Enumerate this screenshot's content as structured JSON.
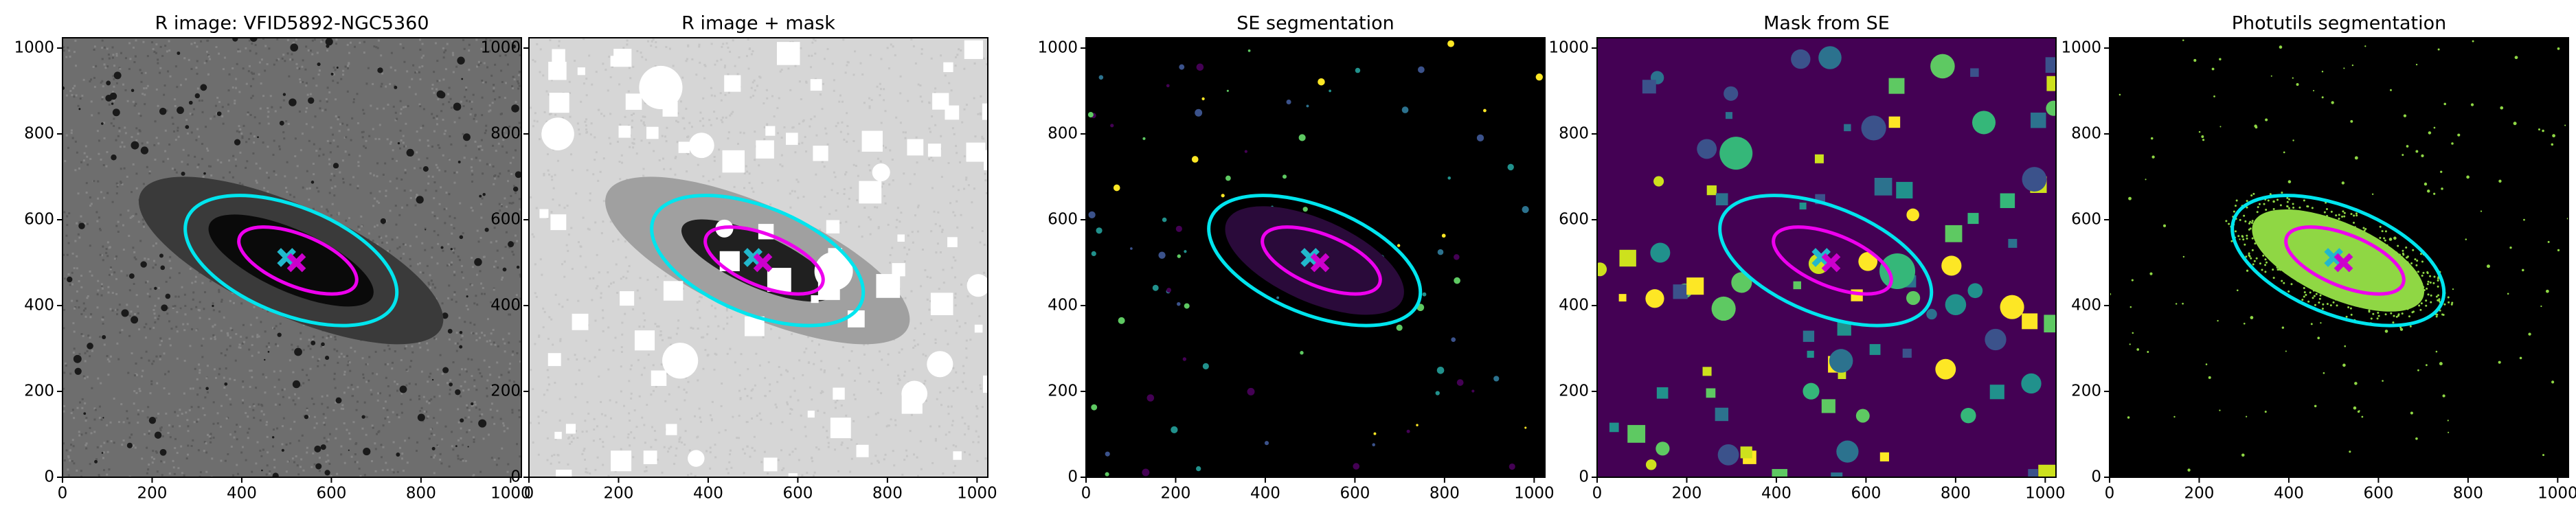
{
  "chart_data": [
    {
      "type": "image",
      "title": "R image: VFID5892-NGC5360",
      "colormap": "gray",
      "xlim": [
        0,
        1024
      ],
      "ylim": [
        0,
        1024
      ],
      "xticks": [
        0,
        200,
        400,
        600,
        800,
        1000
      ],
      "yticks": [
        0,
        200,
        400,
        600,
        800,
        1000
      ],
      "ellipses": [
        {
          "color": "#00e5ee",
          "cx": 510,
          "cy": 505,
          "a": 250,
          "b": 125,
          "angle": -22
        },
        {
          "color": "#ee00ee",
          "cx": 525,
          "cy": 505,
          "a": 140,
          "b": 60,
          "angle": -22
        }
      ],
      "markers": [
        {
          "color": "#22b8cc",
          "x": 500,
          "y": 512
        },
        {
          "color": "#cc00cc",
          "x": 522,
          "y": 500
        }
      ]
    },
    {
      "type": "image",
      "title": "R image + mask",
      "colormap": "gray_r",
      "xlim": [
        0,
        1024
      ],
      "ylim": [
        0,
        1024
      ],
      "xticks": [
        0,
        200,
        400,
        600,
        800,
        1000
      ],
      "yticks": [
        0,
        200,
        400,
        600,
        800,
        1000
      ],
      "ellipses": [
        {
          "color": "#00e5ee",
          "cx": 510,
          "cy": 505,
          "a": 250,
          "b": 125,
          "angle": -22
        },
        {
          "color": "#ee00ee",
          "cx": 525,
          "cy": 505,
          "a": 140,
          "b": 60,
          "angle": -22
        }
      ],
      "markers": [
        {
          "color": "#22b8cc",
          "x": 500,
          "y": 512
        },
        {
          "color": "#cc00cc",
          "x": 522,
          "y": 500
        }
      ]
    },
    {
      "type": "image",
      "title": "SE segmentation",
      "colormap": "segmentation",
      "xlim": [
        0,
        1024
      ],
      "ylim": [
        0,
        1024
      ],
      "xticks": [
        0,
        200,
        400,
        600,
        800,
        1000
      ],
      "yticks": [
        0,
        200,
        400,
        600,
        800,
        1000
      ],
      "ellipses": [
        {
          "color": "#00e5ee",
          "cx": 510,
          "cy": 505,
          "a": 250,
          "b": 125,
          "angle": -22
        },
        {
          "color": "#ee00ee",
          "cx": 525,
          "cy": 505,
          "a": 140,
          "b": 60,
          "angle": -22
        }
      ],
      "markers": [
        {
          "color": "#22b8cc",
          "x": 500,
          "y": 512
        },
        {
          "color": "#cc00cc",
          "x": 522,
          "y": 500
        }
      ]
    },
    {
      "type": "image",
      "title": "Mask from SE",
      "colormap": "viridis",
      "xlim": [
        0,
        1024
      ],
      "ylim": [
        0,
        1024
      ],
      "xticks": [
        0,
        200,
        400,
        600,
        800,
        1000
      ],
      "yticks": [
        0,
        200,
        400,
        600,
        800,
        1000
      ],
      "ellipses": [
        {
          "color": "#00e5ee",
          "cx": 510,
          "cy": 505,
          "a": 250,
          "b": 125,
          "angle": -22
        },
        {
          "color": "#ee00ee",
          "cx": 525,
          "cy": 505,
          "a": 140,
          "b": 60,
          "angle": -22
        }
      ],
      "markers": [
        {
          "color": "#22b8cc",
          "x": 500,
          "y": 512
        },
        {
          "color": "#cc00cc",
          "x": 522,
          "y": 500
        }
      ]
    },
    {
      "type": "image",
      "title": "Photutils segmentation",
      "colormap": "photutils",
      "xlim": [
        0,
        1024
      ],
      "ylim": [
        0,
        1024
      ],
      "xticks": [
        0,
        200,
        400,
        600,
        800,
        1000
      ],
      "yticks": [
        0,
        200,
        400,
        600,
        800,
        1000
      ],
      "ellipses": [
        {
          "color": "#00e5ee",
          "cx": 510,
          "cy": 505,
          "a": 250,
          "b": 125,
          "angle": -22
        },
        {
          "color": "#ee00ee",
          "cx": 525,
          "cy": 505,
          "a": 140,
          "b": 60,
          "angle": -22
        }
      ],
      "markers": [
        {
          "color": "#22b8cc",
          "x": 500,
          "y": 512
        },
        {
          "color": "#cc00cc",
          "x": 522,
          "y": 500
        }
      ]
    }
  ]
}
